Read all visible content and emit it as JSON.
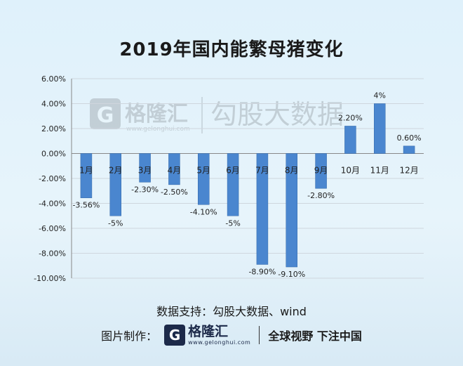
{
  "title": "2019年国内能繁母猪变化",
  "source": "数据支持：勾股大数据、wind",
  "footer": {
    "label": "图片制作：",
    "logo_mark": "G",
    "logo_name": "格隆汇",
    "logo_sub": "www.gelonghui.com",
    "slogan": "全球视野 下注中国"
  },
  "watermark": {
    "mark": "G",
    "name": "格隆汇",
    "sub": "www.gelonghui.com",
    "right": "勾股大数据"
  },
  "colors": {
    "bar": "#4a86cf",
    "bar_edge": "#3469a8",
    "grid": "#cfd6de",
    "axis": "#888888"
  },
  "chart_data": {
    "type": "bar",
    "title": "2019年国内能繁母猪变化",
    "categories": [
      "1月",
      "2月",
      "3月",
      "4月",
      "5月",
      "6月",
      "7月",
      "8月",
      "9月",
      "10月",
      "11月",
      "12月"
    ],
    "values": [
      -3.56,
      -5,
      -2.3,
      -2.5,
      -4.1,
      -5,
      -8.9,
      -9.1,
      -2.8,
      2.2,
      4,
      0.6
    ],
    "data_labels": [
      "-3.56%",
      "-5%",
      "-2.30%",
      "-2.50%",
      "-4.10%",
      "-5%",
      "-8.90%",
      "-9.10%",
      "-2.80%",
      "2.20%",
      "4%",
      "0.60%"
    ],
    "ylim": [
      -10,
      6
    ],
    "yticks": [
      6,
      4,
      2,
      0,
      -2,
      -4,
      -6,
      -8,
      -10
    ],
    "ytick_labels": [
      "6.00%",
      "4.00%",
      "2.00%",
      "0.00%",
      "-2.00%",
      "-4.00%",
      "-6.00%",
      "-8.00%",
      "-10.00%"
    ],
    "grid": true,
    "xlabel": "",
    "ylabel": ""
  }
}
